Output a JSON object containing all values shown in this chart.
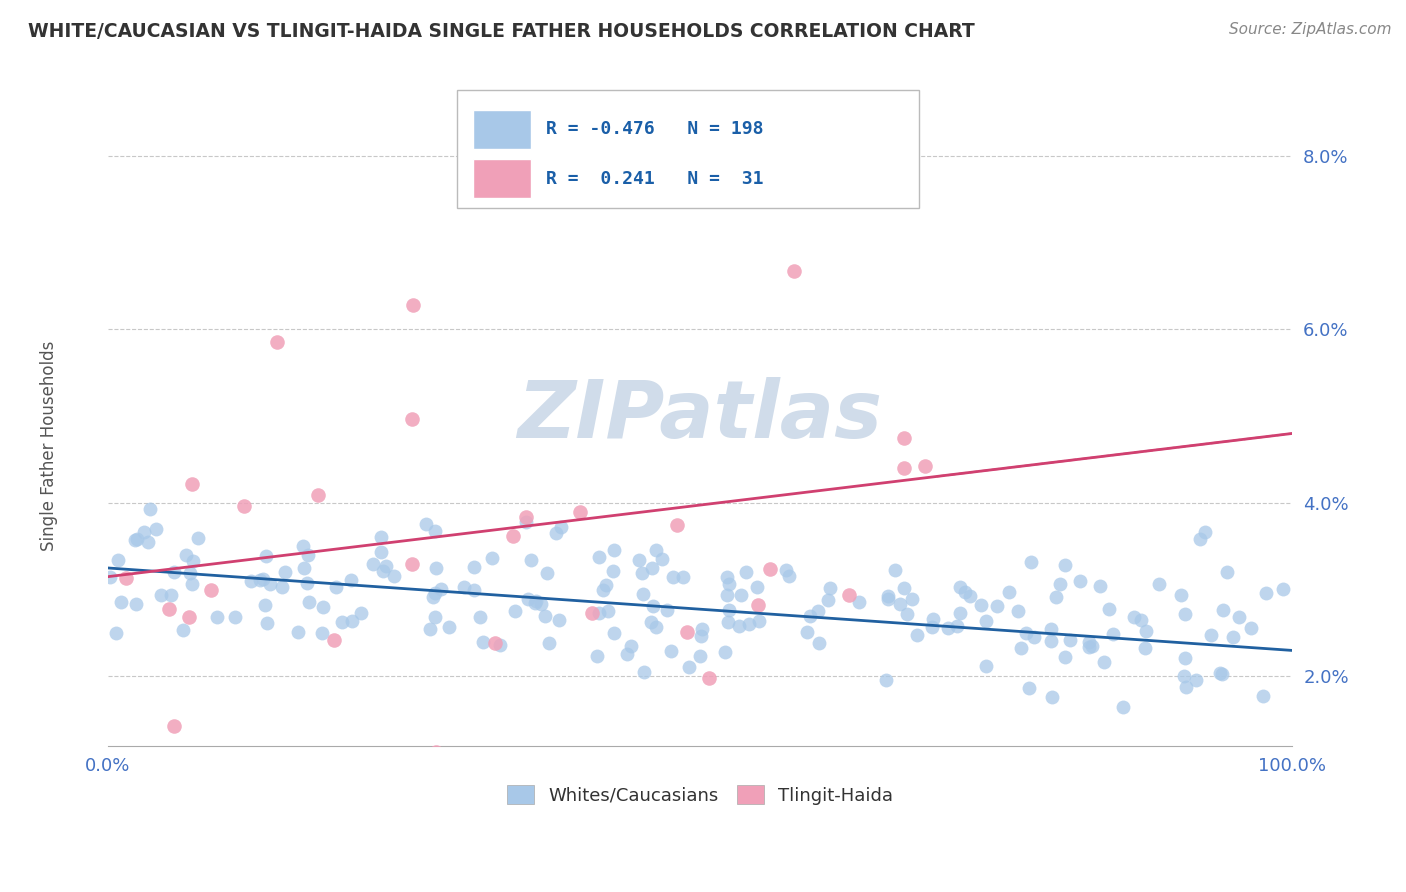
{
  "title": "WHITE/CAUCASIAN VS TLINGIT-HAIDA SINGLE FATHER HOUSEHOLDS CORRELATION CHART",
  "source": "Source: ZipAtlas.com",
  "ylabel": "Single Father Households",
  "xlim": [
    0,
    100
  ],
  "ylim": [
    1.2,
    8.8
  ],
  "yticks": [
    2.0,
    4.0,
    6.0,
    8.0
  ],
  "legend_labels": [
    "Whites/Caucasians",
    "Tlingit-Haida"
  ],
  "legend_r": [
    -0.476,
    0.241
  ],
  "legend_n": [
    198,
    31
  ],
  "blue_color": "#a8c8e8",
  "pink_color": "#f0a0b8",
  "blue_line_color": "#2060a0",
  "pink_line_color": "#d04070",
  "background_color": "#ffffff",
  "grid_color": "#c8c8c8",
  "watermark_color": "#d0dcea",
  "blue_r": -0.476,
  "blue_n": 198,
  "pink_r": 0.241,
  "pink_n": 31,
  "blue_line_start_y": 3.25,
  "blue_line_end_y": 2.3,
  "pink_line_start_y": 3.15,
  "pink_line_end_y": 4.8
}
